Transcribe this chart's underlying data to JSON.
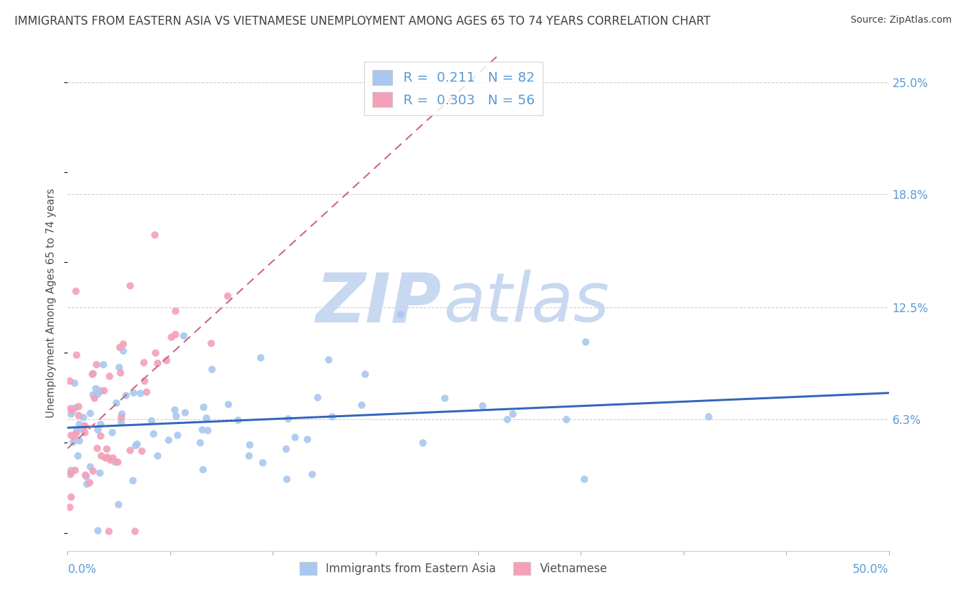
{
  "title": "IMMIGRANTS FROM EASTERN ASIA VS VIETNAMESE UNEMPLOYMENT AMONG AGES 65 TO 74 YEARS CORRELATION CHART",
  "source": "Source: ZipAtlas.com",
  "ylabel": "Unemployment Among Ages 65 to 74 years",
  "xlim": [
    0.0,
    0.5
  ],
  "ylim": [
    -0.01,
    0.265
  ],
  "yticks": [
    0.0,
    0.063,
    0.125,
    0.188,
    0.25
  ],
  "ytick_labels": [
    "",
    "6.3%",
    "12.5%",
    "18.8%",
    "25.0%"
  ],
  "blue_R": 0.211,
  "blue_N": 82,
  "pink_R": 0.303,
  "pink_N": 56,
  "blue_color": "#a8c8f0",
  "pink_color": "#f4a0b8",
  "blue_line_color": "#3366bb",
  "pink_line_color": "#cc6677",
  "watermark_top": "ZIP",
  "watermark_bot": "atlas",
  "watermark_color": "#c8d8f0",
  "legend_label_blue": "Immigrants from Eastern Asia",
  "legend_label_pink": "Vietnamese",
  "background_color": "#ffffff",
  "grid_color": "#cccccc",
  "title_color": "#404040",
  "tick_label_color": "#5b9bd5",
  "ylabel_color": "#505050"
}
